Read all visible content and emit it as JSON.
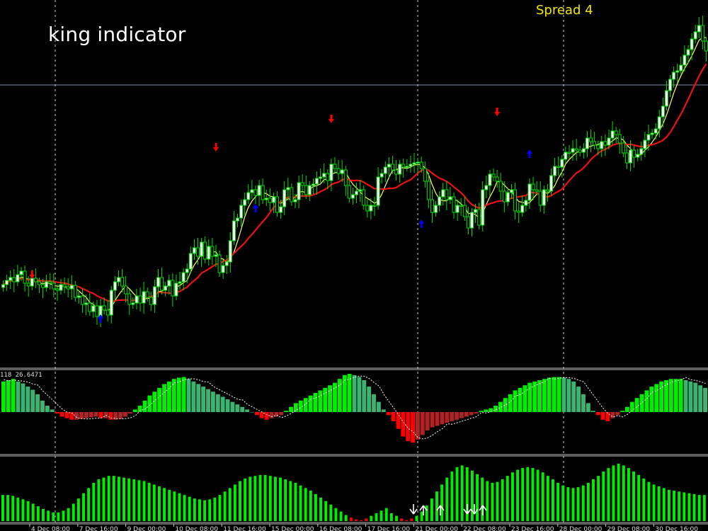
{
  "title": "king indicator",
  "spread_label": "Spread 4",
  "indicator_label": "118 26.6471",
  "colors": {
    "background": "#000000",
    "bull_candle": "#ffffff",
    "bear_candle": "#00dd00",
    "ma_slow": "#ee1111",
    "ma_fast": "#ffff66",
    "histo_up_strong": "#00ee00",
    "histo_up_weak": "#3cb371",
    "histo_down_strong": "#ff0000",
    "histo_down_weak": "#b22222",
    "buy_arrow": "#0000ff",
    "sell_arrow": "#ff0000",
    "grid": "#ffffff"
  },
  "chart_data": [
    {
      "type": "candlestick",
      "name": "price",
      "x_ticks": [
        "4 Dec 08:00",
        "7 Dec 16:00",
        "9 Dec 00:00",
        "10 Dec 08:00",
        "11 Dec 16:00",
        "15 Dec 00:00",
        "16 Dec 08:00",
        "17 Dec 16:00",
        "21 Dec 00:00",
        "22 Dec 08:00",
        "23 Dec 16:00",
        "28 Dec 00:00",
        "29 Dec 08:00",
        "30 Dec 16:00"
      ],
      "close_values": [
        402,
        396,
        392,
        398,
        388,
        383,
        400,
        404,
        393,
        398,
        402,
        406,
        398,
        400,
        408,
        410,
        402,
        405,
        408,
        403,
        420,
        418,
        430,
        428,
        440,
        432,
        447,
        432,
        438,
        445,
        410,
        398,
        392,
        404,
        415,
        430,
        428,
        418,
        428,
        412,
        420,
        430,
        405,
        392,
        410,
        404,
        396,
        418,
        400,
        398,
        385,
        380,
        358,
        350,
        362,
        342,
        366,
        348,
        362,
        360,
        385,
        375,
        370,
        340,
        312,
        308,
        290,
        282,
        272,
        268,
        276,
        262,
        282,
        280,
        286,
        278,
        300,
        292,
        268,
        265,
        285,
        282,
        258,
        262,
        275,
        262,
        260,
        252,
        250,
        245,
        255,
        232,
        238,
        245,
        240,
        262,
        280,
        275,
        270,
        268,
        290,
        298,
        290,
        290,
        250,
        245,
        236,
        232,
        240,
        246,
        232,
        236,
        235,
        232,
        230,
        229,
        238,
        256,
        282,
        300,
        290,
        278,
        268,
        282,
        278,
        300,
        290,
        290,
        306,
        322,
        300,
        296,
        318,
        268,
        262,
        246,
        250,
        256,
        270,
        285,
        272,
        268,
        298,
        300,
        290,
        283,
        260,
        268,
        270,
        290,
        268,
        270,
        248,
        235,
        236,
        225,
        215,
        215,
        210,
        212,
        215,
        210,
        195,
        200,
        205,
        210,
        200,
        205,
        195,
        185,
        190,
        202,
        216,
        230,
        212,
        222,
        218,
        210,
        198,
        190,
        188,
        182,
        165,
        150,
        128,
        112,
        102,
        100,
        92,
        78,
        70,
        55,
        45,
        36,
        58,
        72
      ],
      "sell_signals": [
        {
          "bar": 8,
          "price": 386
        },
        {
          "bar": 59,
          "price": 206
        },
        {
          "bar": 91,
          "price": 166
        },
        {
          "bar": 137,
          "price": 156
        }
      ],
      "buy_signals": [
        {
          "bar": 27,
          "price": 452
        },
        {
          "bar": 70,
          "price": 296
        },
        {
          "bar": 116,
          "price": 318
        },
        {
          "bar": 146,
          "price": 219
        }
      ],
      "ma_slow_period": 14,
      "ma_fast_period": 5
    },
    {
      "type": "bar",
      "name": "oscillator",
      "ylim": [
        -50,
        60
      ],
      "values": [
        48,
        50,
        52,
        48,
        45,
        40,
        35,
        28,
        18,
        10,
        4,
        -2,
        -6,
        -8,
        -10,
        -10,
        -9,
        -8,
        -7,
        -6,
        -8,
        -8,
        -10,
        -10,
        -9,
        -6,
        -2,
        4,
        10,
        18,
        26,
        32,
        38,
        44,
        48,
        52,
        54,
        55,
        52,
        48,
        44,
        40,
        36,
        32,
        28,
        24,
        20,
        16,
        12,
        8,
        4,
        0,
        -4,
        -8,
        -10,
        -8,
        -6,
        -4,
        2,
        8,
        14,
        18,
        22,
        26,
        30,
        34,
        38,
        42,
        46,
        52,
        58,
        60,
        58,
        55,
        50,
        40,
        28,
        16,
        4,
        -4,
        -12,
        -22,
        -32,
        -38,
        -40,
        -36,
        -30,
        -24,
        -20,
        -18,
        -16,
        -14,
        -12,
        -10,
        -8,
        -6,
        -4,
        -2,
        2,
        4,
        6,
        10,
        16,
        22,
        28,
        34,
        38,
        42,
        46,
        48,
        50,
        52,
        54,
        55,
        55,
        54,
        52,
        48,
        40,
        28,
        14,
        2,
        -4,
        -10,
        -12,
        -8,
        -4,
        2,
        8,
        16,
        22,
        28,
        34,
        40,
        44,
        48,
        50,
        52,
        52,
        52,
        50,
        48,
        46,
        42,
        38
      ],
      "signal_line": true
    },
    {
      "type": "bar",
      "name": "histogram",
      "ylim": [
        0,
        70
      ],
      "values": [
        30,
        30,
        29,
        27,
        25,
        23,
        20,
        17,
        14,
        12,
        10,
        10,
        12,
        15,
        20,
        26,
        32,
        38,
        44,
        48,
        50,
        52,
        52,
        51,
        50,
        49,
        48,
        47,
        46,
        44,
        42,
        40,
        38,
        36,
        34,
        32,
        30,
        28,
        26,
        25,
        24,
        25,
        27,
        30,
        34,
        38,
        42,
        46,
        49,
        51,
        52,
        53,
        53,
        52,
        51,
        50,
        48,
        46,
        44,
        41,
        38,
        35,
        31,
        27,
        23,
        19,
        15,
        11,
        7,
        4,
        2,
        1,
        3,
        6,
        9,
        12,
        15,
        9,
        6,
        3,
        1,
        3,
        6,
        11,
        18,
        26,
        34,
        42,
        50,
        57,
        62,
        64,
        62,
        58,
        54,
        50,
        46,
        44,
        45,
        48,
        52,
        56,
        59,
        61,
        62,
        61,
        59,
        56,
        52,
        48,
        44,
        41,
        39,
        38,
        39,
        41,
        44,
        48,
        52,
        57,
        61,
        64,
        66,
        64,
        61,
        57,
        53,
        49,
        45,
        42,
        40,
        38,
        36,
        35,
        34,
        33,
        32,
        31,
        30,
        30
      ],
      "up_arrows": [
        18,
        24,
        27
      ],
      "down_arrows": [
        17,
        23,
        26
      ]
    }
  ]
}
